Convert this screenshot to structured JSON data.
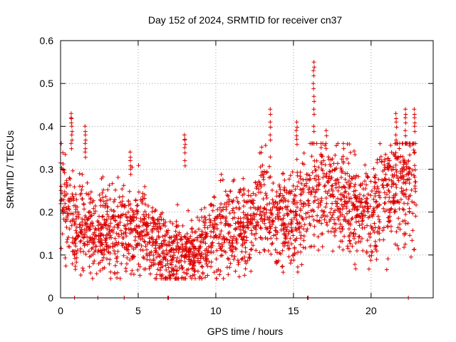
{
  "chart_data": {
    "type": "scatter",
    "title": "Day 152 of 2024, SRMTID for receiver cn37",
    "xlabel": "GPS time / hours",
    "ylabel": "SRMTID / TECUs",
    "xlim": [
      0,
      24
    ],
    "ylim": [
      0,
      0.6
    ],
    "x_ticks": [
      0,
      5,
      10,
      15,
      20
    ],
    "x_tick_labels": [
      "0",
      "5",
      "10",
      "15",
      "20"
    ],
    "y_ticks": [
      0,
      0.1,
      0.2,
      0.3,
      0.4,
      0.5,
      0.6
    ],
    "y_tick_labels": [
      "0",
      "0.1",
      "0.2",
      "0.3",
      "0.4",
      "0.5",
      "0.6"
    ],
    "grid": true,
    "marker": "+",
    "color": "#dd0000",
    "series_name": "SRMTID",
    "x_range_hours": [
      0,
      22.9
    ],
    "point_count_approx": 2400,
    "trend": [
      [
        0.0,
        0.25
      ],
      [
        0.5,
        0.2
      ],
      [
        1.0,
        0.17
      ],
      [
        2.0,
        0.16
      ],
      [
        3.0,
        0.15
      ],
      [
        4.0,
        0.16
      ],
      [
        5.0,
        0.18
      ],
      [
        6.0,
        0.12
      ],
      [
        7.0,
        0.1
      ],
      [
        8.0,
        0.1
      ],
      [
        9.0,
        0.1
      ],
      [
        10.0,
        0.15
      ],
      [
        11.0,
        0.17
      ],
      [
        12.0,
        0.15
      ],
      [
        13.0,
        0.22
      ],
      [
        14.0,
        0.19
      ],
      [
        15.0,
        0.17
      ],
      [
        16.0,
        0.24
      ],
      [
        17.0,
        0.25
      ],
      [
        18.0,
        0.23
      ],
      [
        19.0,
        0.21
      ],
      [
        20.0,
        0.19
      ],
      [
        21.0,
        0.24
      ],
      [
        22.0,
        0.27
      ],
      [
        22.9,
        0.28
      ]
    ],
    "spikes": [
      {
        "x": 0.7,
        "values": [
          0.36,
          0.38,
          0.4,
          0.42,
          0.43
        ]
      },
      {
        "x": 1.6,
        "values": [
          0.34,
          0.36,
          0.38,
          0.4
        ]
      },
      {
        "x": 4.5,
        "values": [
          0.3,
          0.32,
          0.34
        ]
      },
      {
        "x": 8.0,
        "values": [
          0.32,
          0.35,
          0.37,
          0.38
        ]
      },
      {
        "x": 13.5,
        "values": [
          0.38,
          0.41,
          0.44
        ]
      },
      {
        "x": 15.2,
        "values": [
          0.37,
          0.39,
          0.41
        ]
      },
      {
        "x": 16.3,
        "values": [
          0.4,
          0.44,
          0.47,
          0.5,
          0.53,
          0.55
        ]
      },
      {
        "x": 17.1,
        "values": [
          0.36,
          0.39
        ]
      },
      {
        "x": 18.2,
        "values": [
          0.33,
          0.36
        ]
      },
      {
        "x": 21.6,
        "values": [
          0.38,
          0.41,
          0.43
        ]
      },
      {
        "x": 22.2,
        "values": [
          0.39,
          0.42,
          0.44
        ]
      },
      {
        "x": 22.8,
        "values": [
          0.4,
          0.42,
          0.44
        ]
      }
    ],
    "zero_markers_x": [
      0.9,
      2.4,
      4.1,
      6.9,
      6.95,
      15.9,
      15.95,
      22.4
    ]
  }
}
